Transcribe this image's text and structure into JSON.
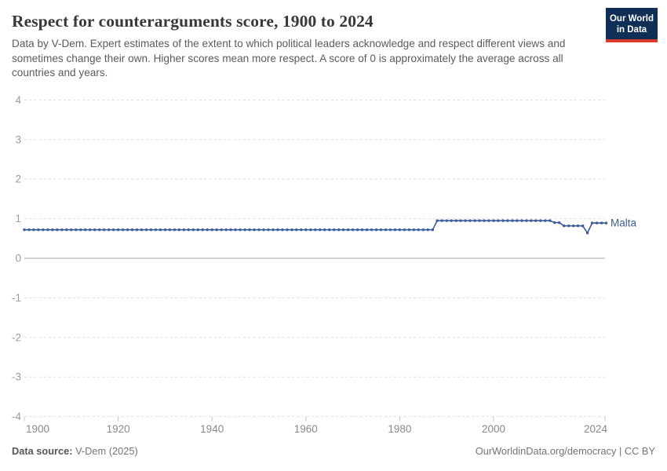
{
  "header": {
    "title": "Respect for counterarguments score, 1900 to 2024",
    "subtitle": "Data by V-Dem. Expert estimates of the extent to which political leaders acknowledge and respect different views and sometimes change their own. Higher scores mean more respect. A score of 0 is approximately the average across all countries and years."
  },
  "logo": {
    "line1": "Our World",
    "line2": "in Data",
    "bg_color": "#102f56",
    "stripe_color": "#d93a2d"
  },
  "footer": {
    "source_label": "Data source:",
    "source_value": " V-Dem (2025)",
    "credit": "OurWorldinData.org/democracy | CC BY"
  },
  "chart_data": {
    "type": "line",
    "title": "Respect for counterarguments score, 1900 to 2024",
    "xlabel": "",
    "ylabel": "",
    "x_start": 1900,
    "x_end": 2024,
    "ylim": [
      -4,
      4
    ],
    "y_ticks": [
      4,
      3,
      2,
      1,
      0,
      -1,
      -2,
      -3,
      -4
    ],
    "x_ticks": [
      1900,
      1920,
      1940,
      1960,
      1980,
      2000,
      2024
    ],
    "grid": "dashed horizontal, solid zero line",
    "legend_position": "end-of-line label",
    "series": [
      {
        "name": "Malta",
        "color": "#3d5c9c",
        "marker": "circle-every-year",
        "values": [
          0.72,
          0.72,
          0.72,
          0.72,
          0.72,
          0.72,
          0.72,
          0.72,
          0.72,
          0.72,
          0.72,
          0.72,
          0.72,
          0.72,
          0.72,
          0.72,
          0.72,
          0.72,
          0.72,
          0.72,
          0.72,
          0.72,
          0.72,
          0.72,
          0.72,
          0.72,
          0.72,
          0.72,
          0.72,
          0.72,
          0.72,
          0.72,
          0.72,
          0.72,
          0.72,
          0.72,
          0.72,
          0.72,
          0.72,
          0.72,
          0.72,
          0.72,
          0.72,
          0.72,
          0.72,
          0.72,
          0.72,
          0.72,
          0.72,
          0.72,
          0.72,
          0.72,
          0.72,
          0.72,
          0.72,
          0.72,
          0.72,
          0.72,
          0.72,
          0.72,
          0.72,
          0.72,
          0.72,
          0.72,
          0.72,
          0.72,
          0.72,
          0.72,
          0.72,
          0.72,
          0.72,
          0.72,
          0.72,
          0.72,
          0.72,
          0.72,
          0.72,
          0.72,
          0.72,
          0.72,
          0.72,
          0.72,
          0.72,
          0.72,
          0.72,
          0.72,
          0.72,
          0.72,
          0.95,
          0.95,
          0.95,
          0.95,
          0.95,
          0.95,
          0.95,
          0.95,
          0.95,
          0.95,
          0.95,
          0.95,
          0.95,
          0.95,
          0.95,
          0.95,
          0.95,
          0.95,
          0.95,
          0.95,
          0.95,
          0.95,
          0.95,
          0.95,
          0.95,
          0.9,
          0.9,
          0.82,
          0.82,
          0.82,
          0.82,
          0.82,
          0.64,
          0.89,
          0.89,
          0.89,
          0.89
        ]
      }
    ],
    "axis_colors": {
      "grid": "#dedede",
      "zero_line": "#a6a6a6",
      "tick": "#c4c4c4",
      "y_label_text": "#9b9b9b",
      "x_label_text": "#8a8a8a"
    }
  }
}
